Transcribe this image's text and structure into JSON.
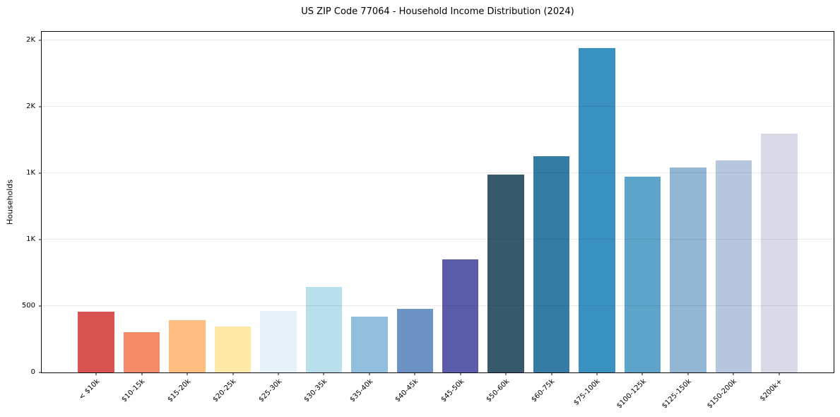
{
  "chart_data": {
    "type": "bar",
    "title": "US ZIP Code 77064 - Household Income Distribution (2024)",
    "xlabel": "",
    "ylabel": "Households",
    "ylim": [
      0,
      2562
    ],
    "grid": "y",
    "legend": "none",
    "categories": [
      "< $10k",
      "$10-15k",
      "$15-20k",
      "$20-25k",
      "$25-30k",
      "$30-35k",
      "$35-40k",
      "$40-45k",
      "$45-50k",
      "$50-60k",
      "$60-75k",
      "$75-100k",
      "$100-125k",
      "$125-150k",
      "$150-200k",
      "$200k+"
    ],
    "values": [
      455,
      305,
      395,
      345,
      460,
      645,
      420,
      480,
      850,
      1490,
      1625,
      2440,
      1475,
      1540,
      1595,
      1795
    ],
    "bar_colors": [
      "#d65350",
      "#f58a68",
      "#fcbd7e",
      "#fde9a5",
      "#e7f2f8",
      "#b9dfec",
      "#92bedd",
      "#6c93c4",
      "#5b5bab",
      "#365a6c",
      "#357ca4",
      "#3991c2",
      "#5ca4ca",
      "#93b6d5",
      "#b8c7e0",
      "#d8dae8"
    ],
    "yticks": [
      {
        "value": 0,
        "label": "0"
      },
      {
        "value": 500,
        "label": "500"
      },
      {
        "value": 1000,
        "label": "1K"
      },
      {
        "value": 1500,
        "label": "1K"
      },
      {
        "value": 2000,
        "label": "2K"
      },
      {
        "value": 2500,
        "label": "2K"
      }
    ],
    "axis_color": "#0a0a0a",
    "grid_color": "#ebebeb",
    "background": "#ffffff"
  }
}
